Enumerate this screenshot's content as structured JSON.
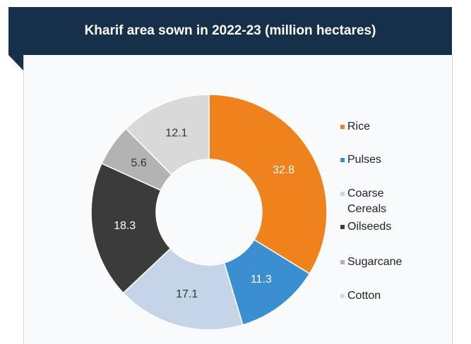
{
  "chart_data": {
    "type": "donut",
    "title": "Kharif area sown in 2022-23 (million hectares)",
    "categories": [
      "Rice",
      "Pulses",
      "Coarse Cereals",
      "Oilseeds",
      "Sugarcane",
      "Cotton"
    ],
    "values": [
      32.8,
      11.3,
      17.1,
      18.3,
      5.6,
      12.1
    ],
    "colors": [
      "#f0821e",
      "#3a8fd0",
      "#c6d4e8",
      "#3b3b3b",
      "#b3b3b3",
      "#d9d9d9"
    ],
    "legend": "right"
  }
}
